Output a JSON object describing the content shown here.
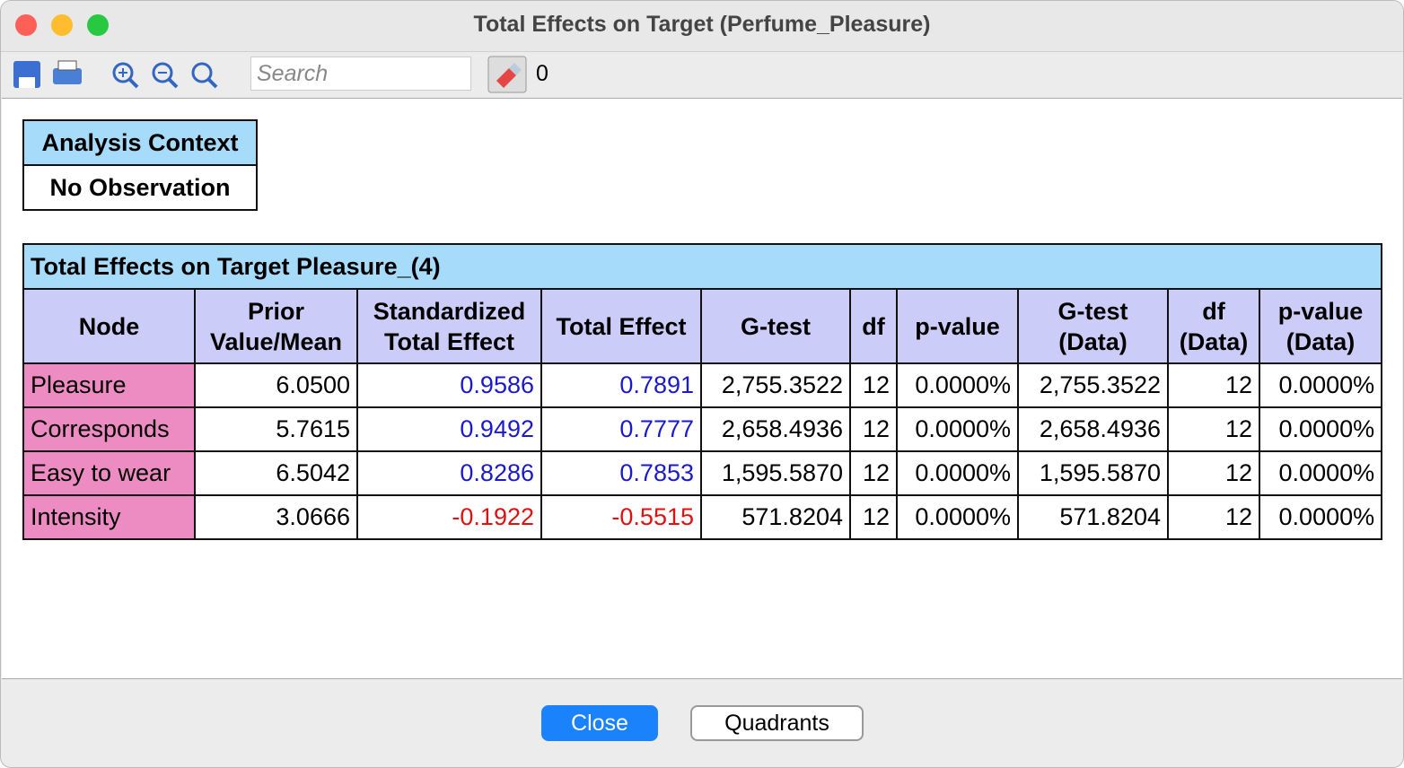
{
  "window": {
    "title": "Total Effects on Target (Perfume_Pleasure)"
  },
  "toolbar": {
    "search_placeholder": "Search",
    "count": 0
  },
  "context_table": {
    "header": "Analysis Context",
    "value": "No Observation"
  },
  "table": {
    "title": "Total Effects on Target Pleasure_(4)",
    "columns": [
      "Node",
      "Prior\nValue/Mean",
      "Standardized\nTotal Effect",
      "Total Effect",
      "G-test",
      "df",
      "p-value",
      "G-test\n(Data)",
      "df\n(Data)",
      "p-value\n(Data)"
    ],
    "rows": [
      [
        "Pleasure",
        "6.0500",
        "0.9586",
        "0.7891",
        "2,755.3522",
        "12",
        "0.0000%",
        "2,755.3522",
        "12",
        "0.0000%"
      ],
      [
        "Corresponds",
        "5.7615",
        "0.9492",
        "0.7777",
        "2,658.4936",
        "12",
        "0.0000%",
        "2,658.4936",
        "12",
        "0.0000%"
      ],
      [
        "Easy to wear",
        "6.5042",
        "0.8286",
        "0.7853",
        "1,595.5870",
        "12",
        "0.0000%",
        "1,595.5870",
        "12",
        "0.0000%"
      ],
      [
        "Intensity",
        "3.0666",
        "-0.1922",
        "-0.5515",
        "571.8204",
        "12",
        "0.0000%",
        "571.8204",
        "12",
        "0.0000%"
      ]
    ]
  },
  "buttons": {
    "close": "Close",
    "quadrants": "Quadrants"
  }
}
